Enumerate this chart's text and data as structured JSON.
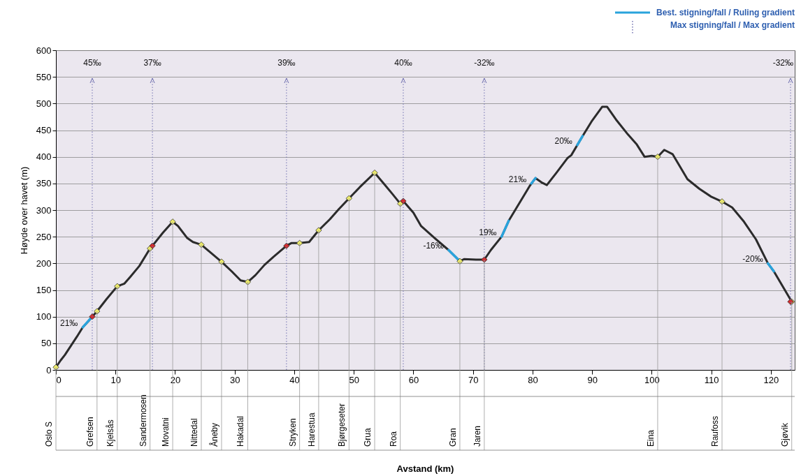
{
  "chart_data": {
    "type": "line",
    "ylabel": "Høyde over havet (m)",
    "xlim": [
      0,
      124
    ],
    "xticks": [
      0,
      10,
      20,
      30,
      40,
      50,
      60,
      70,
      80,
      90,
      100,
      110,
      120
    ],
    "ylim": [
      0,
      600
    ],
    "yticks": [
      0,
      50,
      100,
      150,
      200,
      250,
      300,
      350,
      400,
      450,
      500,
      550,
      600
    ],
    "grid": "y",
    "legend": "top right",
    "series": [
      {
        "color": "#2b2b2b",
        "x": [
          0,
          0.8,
          1.5,
          2.5,
          3.5,
          4.5,
          5.5,
          6.1,
          6.9,
          8.5,
          10.3,
          11.5,
          12.5,
          14,
          15.8,
          16.2,
          18,
          19.6,
          20.5,
          22,
          23,
          24.4,
          26,
          27.8,
          29.5,
          31,
          32.2,
          33.5,
          35,
          36.5,
          38.7,
          39.5,
          40.9,
          42.5,
          44.1,
          46,
          47.5,
          49.2,
          51,
          53.5,
          55,
          56.5,
          57.8,
          58.3,
          60,
          61.3,
          63.5,
          65.9,
          67.8,
          68.5,
          70.5,
          71.9,
          73,
          74.8,
          76,
          78,
          79.5,
          80.5,
          81.5,
          82.4,
          84,
          85.9,
          86.5,
          88.4,
          90,
          91.7,
          92.5,
          94,
          96,
          97.5,
          98.8,
          100,
          101,
          102.1,
          103.5,
          106,
          108,
          110,
          111.8,
          113.5,
          115.5,
          117.5,
          119.5,
          120.5,
          123.5
        ],
        "values": [
          5,
          18,
          28,
          45,
          62,
          80,
          92,
          100,
          110,
          133,
          157,
          162,
          175,
          195,
          228,
          233,
          258,
          278,
          270,
          248,
          240,
          235,
          220,
          203,
          185,
          168,
          165,
          178,
          197,
          212,
          233,
          238,
          238,
          240,
          262,
          283,
          302,
          322,
          343,
          370,
          350,
          330,
          312,
          317,
          295,
          270,
          248,
          225,
          204,
          208,
          207,
          207,
          225,
          250,
          280,
          317,
          345,
          360,
          352,
          347,
          370,
          398,
          403,
          439,
          468,
          494,
          494,
          470,
          442,
          423,
          400,
          402,
          400,
          413,
          405,
          358,
          340,
          325,
          316,
          305,
          278,
          245,
          200,
          185,
          128
        ]
      },
      {
        "name": "Best. stigning/fall / Ruling gradient",
        "color": "#29a3dc",
        "x": [
          4.5,
          6.1,
          6.2,
          65.9,
          67.8,
          67.9,
          74.8,
          76,
          76.1,
          79.8,
          80.5,
          80.6,
          87.5,
          88.4,
          88.5,
          119.5,
          120.5
        ],
        "values": [
          80,
          100,
          null,
          225,
          204,
          null,
          250,
          280,
          null,
          350,
          360,
          null,
          422,
          439,
          null,
          200,
          185
        ]
      },
      {
        "type": "scatter",
        "marker": "diamond",
        "color": "#eeec6a",
        "x": [
          0,
          6.9,
          10.3,
          15.8,
          19.6,
          24.4,
          27.8,
          32.2,
          40.9,
          44.1,
          49.2,
          53.5,
          57.8,
          67.8,
          101,
          111.8,
          123.5
        ],
        "values": [
          5,
          110,
          157,
          228,
          278,
          235,
          203,
          165,
          238,
          262,
          322,
          370,
          312,
          204,
          400,
          316,
          128
        ]
      },
      {
        "type": "scatter",
        "marker": "diamond",
        "color": "#d42a2a",
        "x": [
          6.1,
          16.2,
          38.7,
          58.3,
          71.9,
          123.3
        ],
        "values": [
          100,
          233,
          233,
          317,
          207,
          128
        ]
      }
    ],
    "ref_lines": [
      {
        "axis": "x",
        "value": 6.1,
        "label": "45‰",
        "line_style": "dotted",
        "color": "#7070b0"
      },
      {
        "axis": "x",
        "value": 16.2,
        "label": "37‰",
        "line_style": "dotted",
        "color": "#7070b0"
      },
      {
        "axis": "x",
        "value": 38.7,
        "label": "39‰",
        "line_style": "dotted",
        "color": "#7070b0"
      },
      {
        "axis": "x",
        "value": 58.3,
        "label": "40‰",
        "line_style": "dotted",
        "color": "#7070b0"
      },
      {
        "axis": "x",
        "value": 71.9,
        "label": "-32‰",
        "line_style": "dotted",
        "color": "#7070b0"
      },
      {
        "axis": "x",
        "value": 123.3,
        "label": "-32‰",
        "line_style": "dotted",
        "color": "#7070b0"
      }
    ],
    "annotations": [
      "Max stigning/fall / Max gradient",
      {
        "text": "21‰",
        "x": 4.5,
        "y": 80
      },
      {
        "text": "-16‰",
        "x": 65.9,
        "y": 225
      },
      {
        "text": "19‰",
        "x": 74.8,
        "y": 250
      },
      {
        "text": "21‰",
        "x": 79.8,
        "y": 350
      },
      {
        "text": "20‰",
        "x": 87.5,
        "y": 422
      },
      {
        "text": "-20‰",
        "x": 119.5,
        "y": 200
      },
      {
        "text": "Oslo S",
        "x": 0,
        "y": 5
      },
      {
        "text": "Grefsen",
        "x": 6.9,
        "y": 110
      },
      {
        "text": "Kjelsås",
        "x": 10.3,
        "y": 157
      },
      {
        "text": "Sandermosen",
        "x": 15.8,
        "y": 228
      },
      {
        "text": "Movatni",
        "x": 19.6,
        "y": 278
      },
      {
        "text": "Nittedal",
        "x": 24.4,
        "y": 235
      },
      {
        "text": "Åneby",
        "x": 27.8,
        "y": 203
      },
      {
        "text": "Hakadal",
        "x": 32.2,
        "y": 165
      },
      {
        "text": "Stryken",
        "x": 40.9,
        "y": 238
      },
      {
        "text": "Harestua",
        "x": 44.1,
        "y": 262
      },
      {
        "text": "Bjørgeseter",
        "x": 49.2,
        "y": 322
      },
      {
        "text": "Grua",
        "x": 53.5,
        "y": 370
      },
      {
        "text": "Roa",
        "x": 57.8,
        "y": 312
      },
      {
        "text": "Gran",
        "x": 67.8,
        "y": 204
      },
      {
        "text": "Jaren",
        "x": 71.9,
        "y": 207
      },
      {
        "text": "Eina",
        "x": 101,
        "y": 400
      },
      {
        "text": "Raufoss",
        "x": 111.8,
        "y": 316
      },
      {
        "text": "Gjøvik",
        "x": 123.5,
        "y": 128
      },
      "Avstand (km)"
    ]
  }
}
